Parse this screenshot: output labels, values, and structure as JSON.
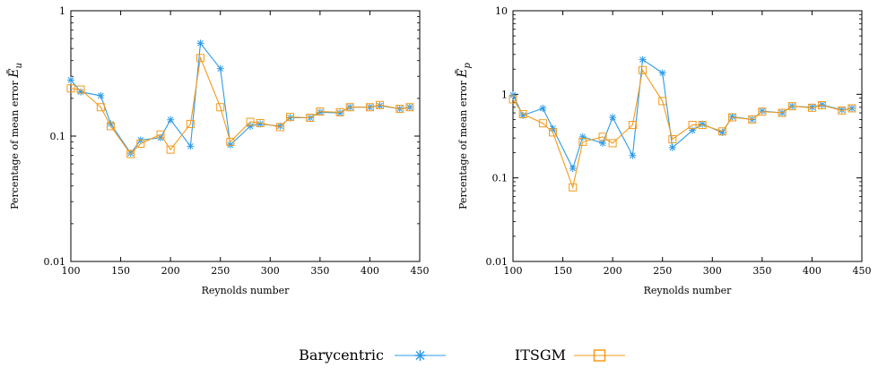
{
  "legend": {
    "entries": [
      {
        "label": "Barycentric",
        "color": "#2e9be8",
        "marker": "asterisk"
      },
      {
        "label": "ITSGM",
        "color": "#f39a1c",
        "marker": "square"
      }
    ]
  },
  "chart_data": [
    {
      "type": "line",
      "title": "",
      "xlabel": "Reynolds number",
      "ylabel": "Percentage of mean error Ē_u",
      "ylabel_main": "Percentage of mean error ",
      "ylabel_symbol": "Ē",
      "ylabel_sub": "u",
      "xlim": [
        100,
        450
      ],
      "ylim": [
        0.01,
        1
      ],
      "yscale": "log",
      "xticks": [
        100,
        150,
        200,
        250,
        300,
        350,
        400,
        450
      ],
      "xtick_labels": [
        "100",
        "150",
        "200",
        "250",
        "300",
        "350",
        "400",
        "450"
      ],
      "yticks": [
        0.01,
        0.1,
        1
      ],
      "ytick_labels": [
        "0.01",
        "0.1",
        "1"
      ],
      "grid": false,
      "series": [
        {
          "name": "Barycentric",
          "color": "#2e9be8",
          "marker": "asterisk",
          "x": [
            100,
            110,
            130,
            140,
            160,
            170,
            190,
            200,
            220,
            230,
            250,
            260,
            280,
            290,
            310,
            320,
            340,
            350,
            370,
            380,
            400,
            410,
            430,
            440
          ],
          "y": [
            0.28,
            0.225,
            0.21,
            0.125,
            0.073,
            0.093,
            0.097,
            0.135,
            0.083,
            0.55,
            0.345,
            0.085,
            0.12,
            0.125,
            0.12,
            0.14,
            0.14,
            0.155,
            0.153,
            0.17,
            0.17,
            0.175,
            0.165,
            0.17
          ]
        },
        {
          "name": "ITSGM",
          "color": "#f39a1c",
          "marker": "square",
          "x": [
            100,
            110,
            130,
            140,
            160,
            170,
            190,
            200,
            220,
            230,
            250,
            260,
            280,
            290,
            310,
            320,
            340,
            350,
            370,
            380,
            400,
            410,
            430,
            440
          ],
          "y": [
            0.24,
            0.235,
            0.17,
            0.12,
            0.072,
            0.087,
            0.103,
            0.078,
            0.125,
            0.42,
            0.17,
            0.09,
            0.13,
            0.127,
            0.118,
            0.142,
            0.14,
            0.157,
            0.155,
            0.17,
            0.17,
            0.177,
            0.165,
            0.17
          ]
        }
      ]
    },
    {
      "type": "line",
      "title": "",
      "xlabel": "Reynolds number",
      "ylabel": "Percentage of mean error Ē_p",
      "ylabel_main": "Percentage of mean error ",
      "ylabel_symbol": "Ē",
      "ylabel_sub": "p",
      "xlim": [
        100,
        450
      ],
      "ylim": [
        0.01,
        10
      ],
      "yscale": "log",
      "xticks": [
        100,
        150,
        200,
        250,
        300,
        350,
        400,
        450
      ],
      "xtick_labels": [
        "100",
        "150",
        "200",
        "250",
        "300",
        "350",
        "400",
        "450"
      ],
      "yticks": [
        0.01,
        0.1,
        1,
        10
      ],
      "ytick_labels": [
        "0.01",
        "0.1",
        "1",
        "10"
      ],
      "grid": false,
      "series": [
        {
          "name": "Barycentric",
          "color": "#2e9be8",
          "marker": "asterisk",
          "x": [
            100,
            110,
            130,
            140,
            160,
            170,
            190,
            200,
            220,
            230,
            250,
            260,
            280,
            290,
            310,
            320,
            340,
            350,
            370,
            380,
            400,
            410,
            430,
            440
          ],
          "y": [
            0.98,
            0.56,
            0.68,
            0.39,
            0.13,
            0.31,
            0.26,
            0.53,
            0.185,
            2.6,
            1.8,
            0.23,
            0.37,
            0.44,
            0.35,
            0.54,
            0.5,
            0.63,
            0.6,
            0.72,
            0.7,
            0.75,
            0.65,
            0.68
          ]
        },
        {
          "name": "ITSGM",
          "color": "#f39a1c",
          "marker": "square",
          "x": [
            100,
            110,
            130,
            140,
            160,
            170,
            190,
            200,
            220,
            230,
            250,
            260,
            280,
            290,
            310,
            320,
            340,
            350,
            370,
            380,
            400,
            410,
            430,
            440
          ],
          "y": [
            0.87,
            0.58,
            0.45,
            0.35,
            0.077,
            0.27,
            0.31,
            0.26,
            0.43,
            1.95,
            0.83,
            0.29,
            0.43,
            0.43,
            0.36,
            0.53,
            0.5,
            0.62,
            0.6,
            0.72,
            0.69,
            0.74,
            0.64,
            0.68
          ]
        }
      ]
    }
  ]
}
